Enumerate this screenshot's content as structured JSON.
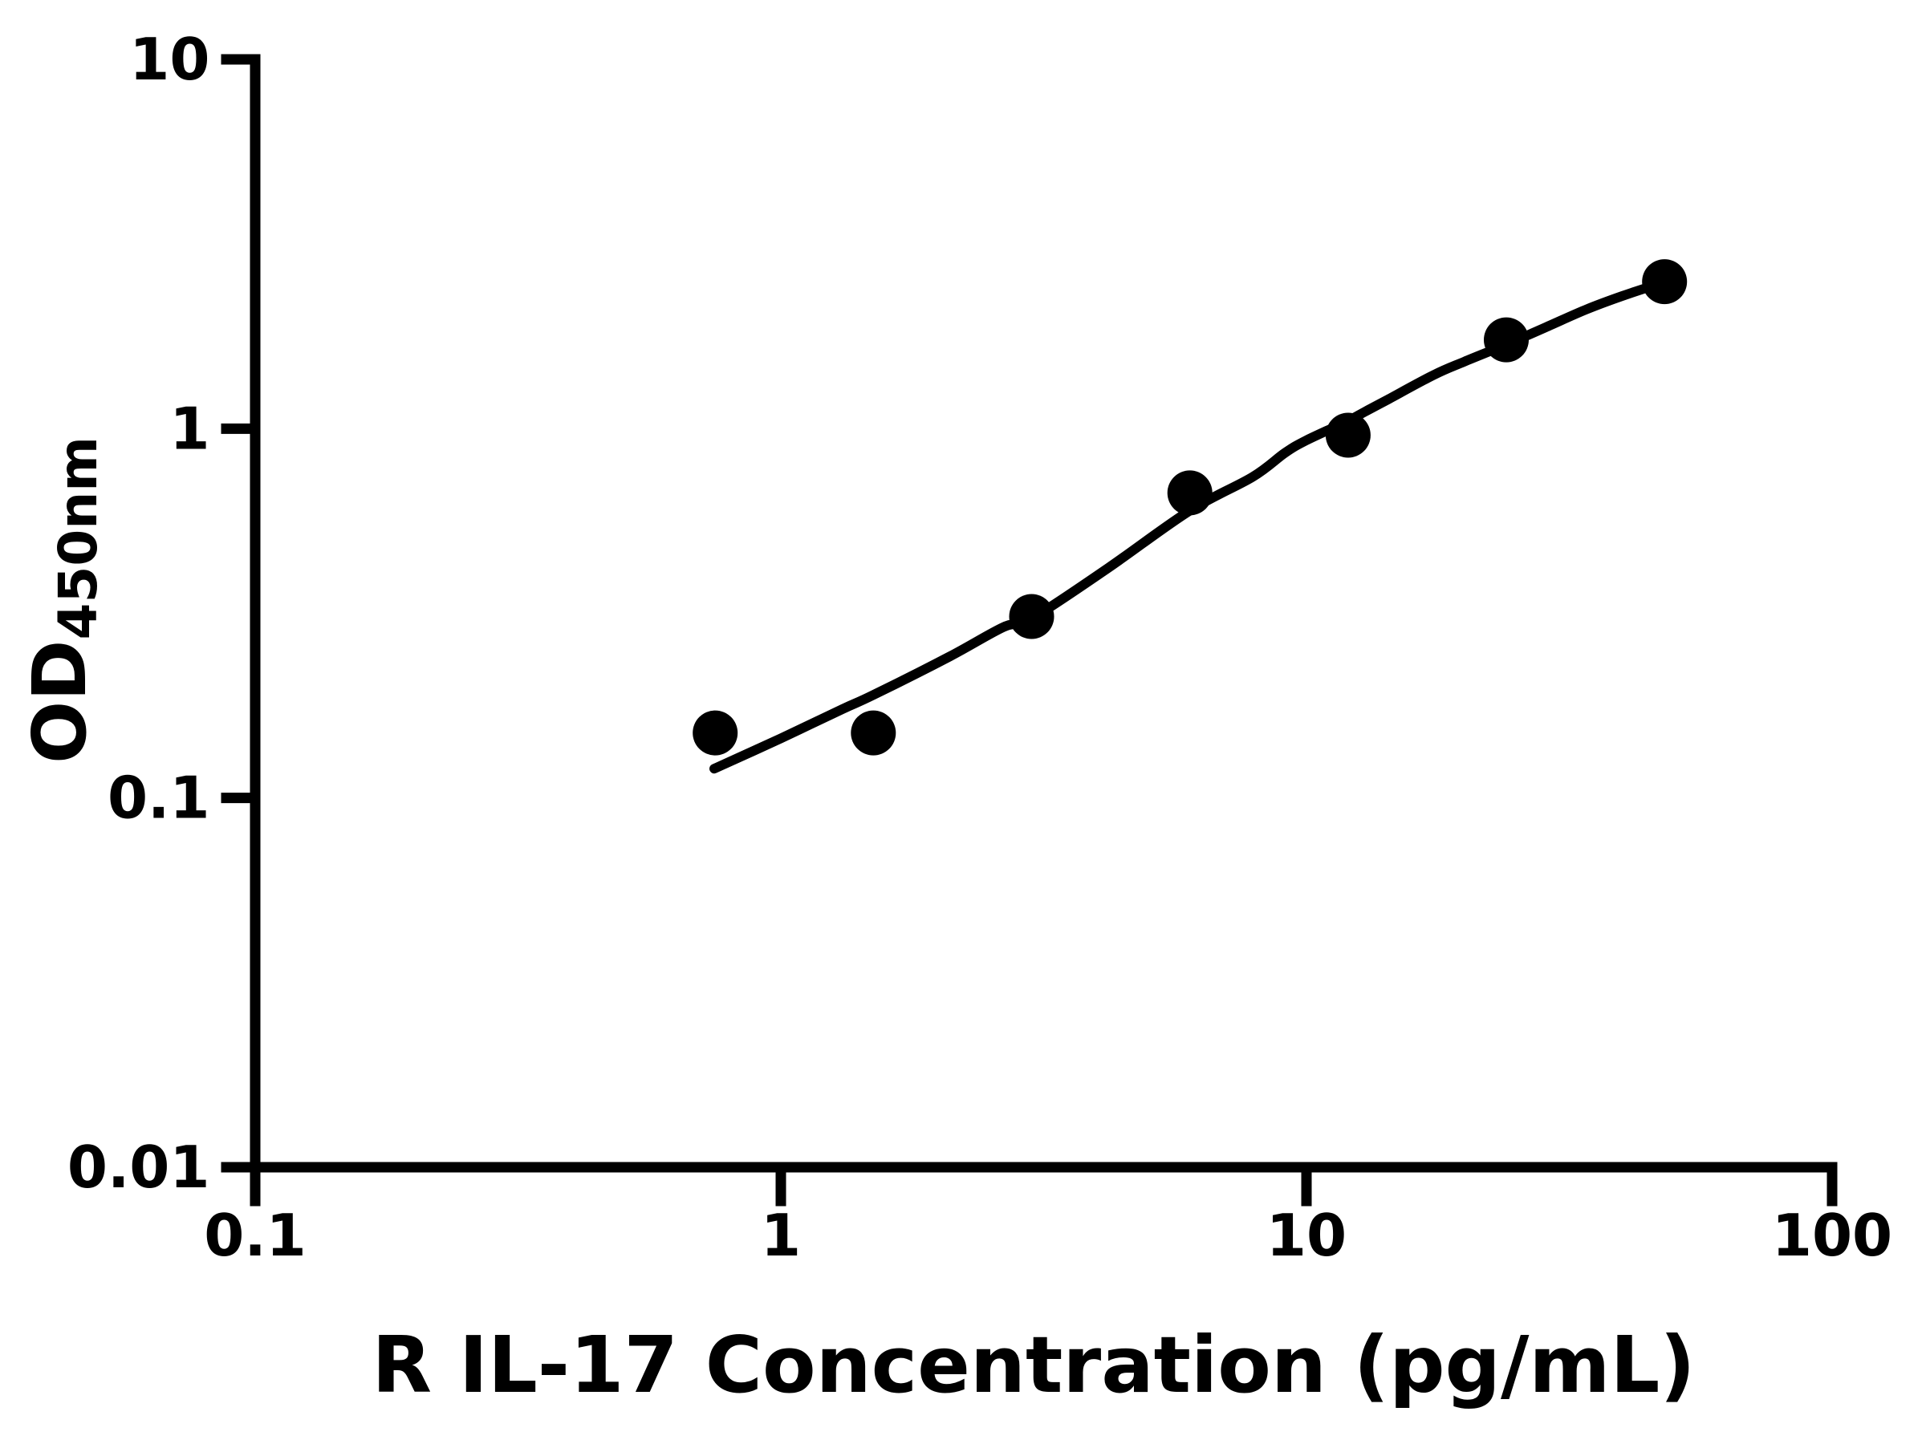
{
  "figure": {
    "background": "#ffffff",
    "foreground": "#000000"
  },
  "chart_data": {
    "type": "scatter",
    "title": "",
    "xlabel": "R IL-17 Concentration (pg/mL)",
    "ylabel": "OD450nm",
    "ylabel_main": "OD",
    "ylabel_sub": "450nm",
    "x_scale": "log",
    "y_scale": "log",
    "xlim": [
      0.1,
      100
    ],
    "ylim": [
      0.01,
      10
    ],
    "x_tick_values": [
      0.1,
      1,
      10,
      100
    ],
    "x_tick_labels": [
      "0.1",
      "1",
      "10",
      "100"
    ],
    "y_tick_values": [
      10,
      1,
      0.1,
      0.01
    ],
    "y_tick_labels": [
      "10",
      "1",
      "0.1",
      "0.01"
    ],
    "grid": false,
    "legend": "none",
    "marker_color": "#000000",
    "line_color": "#000000",
    "series": [
      {
        "name": "R IL-17 standard points",
        "type": "scatter",
        "marker": "filled-circle",
        "points": [
          [
            0.75,
            0.15
          ],
          [
            1.5,
            0.15
          ],
          [
            3,
            0.31
          ],
          [
            6,
            0.67
          ],
          [
            12,
            0.96
          ],
          [
            24,
            1.74
          ],
          [
            48,
            2.5
          ]
        ]
      },
      {
        "name": "fit curve",
        "type": "line",
        "points": [
          [
            0.747,
            0.12
          ],
          [
            1.0,
            0.145
          ],
          [
            1.31,
            0.174
          ],
          [
            1.5,
            0.19
          ],
          [
            2.1,
            0.242
          ],
          [
            2.65,
            0.29
          ],
          [
            3.0,
            0.306
          ],
          [
            4.2,
            0.42
          ],
          [
            6.0,
            0.6
          ],
          [
            7.9,
            0.74
          ],
          [
            9.1,
            0.86
          ],
          [
            10.0,
            0.93
          ],
          [
            12.0,
            1.05
          ],
          [
            12.9,
            1.11
          ],
          [
            14.3,
            1.2
          ],
          [
            17.5,
            1.4
          ],
          [
            20.0,
            1.52
          ],
          [
            24.0,
            1.69
          ],
          [
            28.5,
            1.88
          ],
          [
            34.0,
            2.1
          ],
          [
            40.0,
            2.29
          ],
          [
            48.0,
            2.495
          ]
        ]
      }
    ]
  }
}
